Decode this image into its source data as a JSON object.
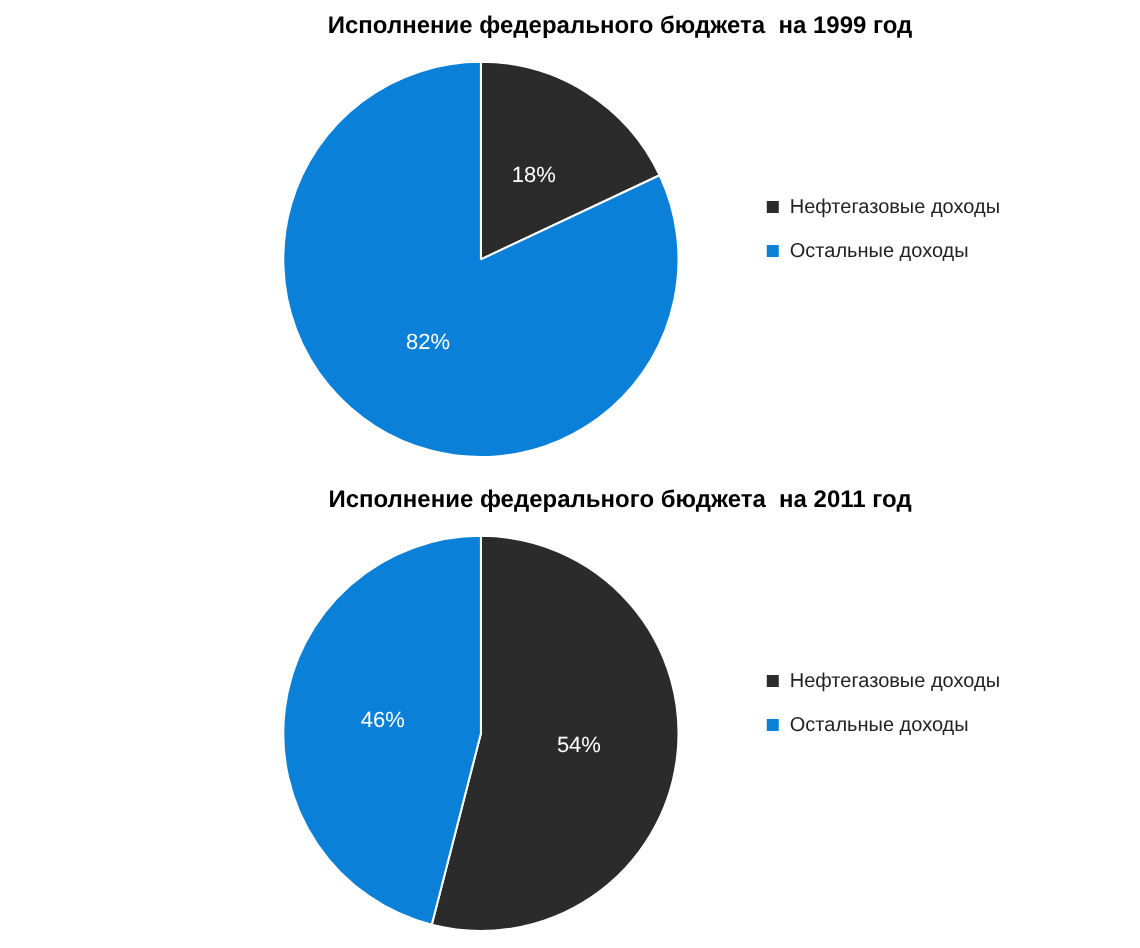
{
  "chart_data": [
    {
      "type": "pie",
      "title": "Исполнение федерального бюджета  на 1999 год",
      "categories": [
        "Нефтегазовые доходы",
        "Остальные доходы"
      ],
      "values": [
        18,
        82
      ],
      "colors": [
        "#2b2b2b",
        "#0a80d8"
      ],
      "value_labels": [
        "18%",
        "82%"
      ],
      "legend": "right"
    },
    {
      "type": "pie",
      "title": "Исполнение федерального бюджета  на 2011 год",
      "categories": [
        "Нефтегазовые доходы",
        "Остальные доходы"
      ],
      "values": [
        54,
        46
      ],
      "colors": [
        "#2b2b2b",
        "#0a80d8"
      ],
      "value_labels": [
        "54%",
        "46%"
      ],
      "legend": "right"
    }
  ]
}
